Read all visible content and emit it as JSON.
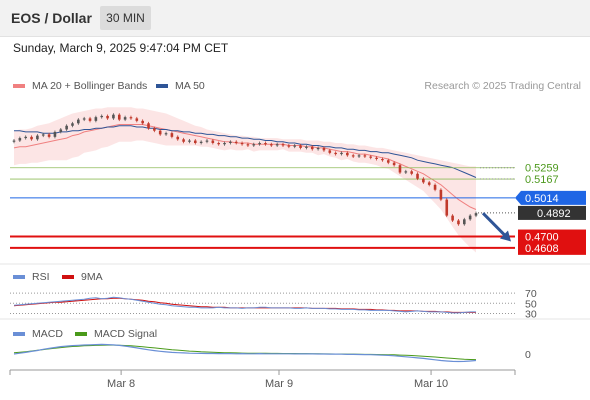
{
  "header": {
    "title": "EOS / Dollar",
    "interval": "30 MIN"
  },
  "datetime": "Sunday, March 9, 2025 9:47:04 PM CET",
  "credit": "Research © 2025 Trading Central",
  "colors": {
    "bollinger": "#f08080",
    "ma50": "#2f5597",
    "ma20": "#f08080",
    "bb_fill": "#fbdcdc",
    "candle": "#c0392b",
    "resistance": "#8fbc5a",
    "pivot": "#1f66e5",
    "support": "#e01010",
    "price_tag": "#333333",
    "rsi": "#6a8fd6",
    "rsi_ma": "#d01010",
    "macd": "#6a8fd6",
    "macd_signal": "#4a9a1a"
  },
  "chart_data": [
    {
      "type": "candlestick",
      "legend": [
        "MA 20 + Bollinger Bands",
        "MA 50"
      ],
      "ylim": [
        0.455,
        0.585
      ],
      "x_ticks": [
        "Mar 8",
        "Mar 9",
        "Mar 10"
      ],
      "levels": [
        {
          "value": 0.5259,
          "label": "0.5259",
          "kind": "resistance"
        },
        {
          "value": 0.5167,
          "label": "0.5167",
          "kind": "resistance"
        },
        {
          "value": 0.5014,
          "label": "0.5014",
          "kind": "pivot"
        },
        {
          "value": 0.4892,
          "label": "0.4892",
          "kind": "last_price"
        },
        {
          "value": 0.47,
          "label": "0.4700",
          "kind": "support"
        },
        {
          "value": 0.4608,
          "label": "0.4608",
          "kind": "support"
        }
      ],
      "close": [
        0.548,
        0.55,
        0.551,
        0.549,
        0.552,
        0.553,
        0.551,
        0.555,
        0.557,
        0.56,
        0.562,
        0.565,
        0.566,
        0.564,
        0.567,
        0.568,
        0.566,
        0.569,
        0.565,
        0.567,
        0.566,
        0.564,
        0.562,
        0.558,
        0.556,
        0.553,
        0.554,
        0.551,
        0.549,
        0.547,
        0.548,
        0.546,
        0.547,
        0.548,
        0.546,
        0.545,
        0.546,
        0.547,
        0.546,
        0.545,
        0.544,
        0.545,
        0.546,
        0.545,
        0.544,
        0.545,
        0.544,
        0.543,
        0.544,
        0.542,
        0.543,
        0.541,
        0.542,
        0.54,
        0.538,
        0.537,
        0.538,
        0.536,
        0.535,
        0.536,
        0.535,
        0.534,
        0.533,
        0.532,
        0.53,
        0.528,
        0.522,
        0.523,
        0.521,
        0.517,
        0.514,
        0.512,
        0.508,
        0.5,
        0.487,
        0.483,
        0.48,
        0.484,
        0.487,
        0.489
      ],
      "ma20": [
        0.542,
        0.543,
        0.543,
        0.544,
        0.545,
        0.546,
        0.547,
        0.548,
        0.549,
        0.55,
        0.552,
        0.553,
        0.555,
        0.556,
        0.557,
        0.558,
        0.559,
        0.56,
        0.561,
        0.561,
        0.561,
        0.561,
        0.561,
        0.56,
        0.559,
        0.558,
        0.557,
        0.556,
        0.555,
        0.554,
        0.553,
        0.552,
        0.551,
        0.55,
        0.549,
        0.548,
        0.547,
        0.547,
        0.546,
        0.546,
        0.546,
        0.545,
        0.545,
        0.545,
        0.545,
        0.545,
        0.545,
        0.544,
        0.544,
        0.544,
        0.543,
        0.543,
        0.542,
        0.542,
        0.541,
        0.54,
        0.539,
        0.539,
        0.538,
        0.537,
        0.537,
        0.536,
        0.535,
        0.534,
        0.533,
        0.531,
        0.529,
        0.527,
        0.525,
        0.523,
        0.521,
        0.518,
        0.515,
        0.512,
        0.508,
        0.504,
        0.5,
        0.497,
        0.494,
        0.492
      ],
      "bb_upper": [
        0.556,
        0.557,
        0.557,
        0.558,
        0.56,
        0.561,
        0.562,
        0.564,
        0.566,
        0.568,
        0.57,
        0.571,
        0.572,
        0.573,
        0.574,
        0.574,
        0.575,
        0.575,
        0.575,
        0.575,
        0.575,
        0.574,
        0.574,
        0.573,
        0.572,
        0.571,
        0.57,
        0.568,
        0.566,
        0.564,
        0.562,
        0.56,
        0.559,
        0.557,
        0.556,
        0.555,
        0.554,
        0.553,
        0.552,
        0.552,
        0.551,
        0.551,
        0.55,
        0.55,
        0.55,
        0.55,
        0.549,
        0.549,
        0.549,
        0.549,
        0.548,
        0.548,
        0.548,
        0.547,
        0.547,
        0.546,
        0.546,
        0.545,
        0.545,
        0.544,
        0.544,
        0.543,
        0.542,
        0.542,
        0.541,
        0.54,
        0.539,
        0.538,
        0.537,
        0.536,
        0.535,
        0.534,
        0.533,
        0.532,
        0.531,
        0.53,
        0.529,
        0.528,
        0.527,
        0.527
      ],
      "bb_lower": [
        0.528,
        0.529,
        0.529,
        0.53,
        0.53,
        0.531,
        0.532,
        0.532,
        0.532,
        0.532,
        0.534,
        0.535,
        0.538,
        0.539,
        0.54,
        0.542,
        0.543,
        0.545,
        0.547,
        0.547,
        0.547,
        0.548,
        0.548,
        0.547,
        0.546,
        0.545,
        0.544,
        0.544,
        0.544,
        0.544,
        0.544,
        0.544,
        0.543,
        0.543,
        0.542,
        0.541,
        0.54,
        0.541,
        0.54,
        0.54,
        0.541,
        0.539,
        0.54,
        0.54,
        0.54,
        0.54,
        0.541,
        0.539,
        0.539,
        0.539,
        0.538,
        0.538,
        0.536,
        0.537,
        0.535,
        0.534,
        0.532,
        0.533,
        0.531,
        0.53,
        0.53,
        0.529,
        0.528,
        0.526,
        0.525,
        0.522,
        0.519,
        0.516,
        0.513,
        0.51,
        0.507,
        0.502,
        0.497,
        0.492,
        0.485,
        0.478,
        0.471,
        0.466,
        0.461,
        0.457
      ],
      "ma50": [
        0.556,
        0.556,
        0.555,
        0.555,
        0.555,
        0.554,
        0.554,
        0.554,
        0.555,
        0.555,
        0.556,
        0.556,
        0.557,
        0.557,
        0.558,
        0.558,
        0.559,
        0.559,
        0.56,
        0.56,
        0.56,
        0.559,
        0.559,
        0.558,
        0.558,
        0.557,
        0.557,
        0.556,
        0.556,
        0.555,
        0.555,
        0.554,
        0.554,
        0.553,
        0.553,
        0.552,
        0.552,
        0.551,
        0.551,
        0.55,
        0.55,
        0.549,
        0.549,
        0.548,
        0.548,
        0.547,
        0.547,
        0.546,
        0.546,
        0.545,
        0.545,
        0.544,
        0.544,
        0.543,
        0.543,
        0.542,
        0.542,
        0.541,
        0.541,
        0.54,
        0.54,
        0.539,
        0.539,
        0.538,
        0.538,
        0.537,
        0.536,
        0.535,
        0.534,
        0.532,
        0.531,
        0.53,
        0.529,
        0.528,
        0.527,
        0.526,
        0.524,
        0.522,
        0.52,
        0.518
      ]
    },
    {
      "type": "line",
      "legend": [
        "RSI",
        "9MA"
      ],
      "ylim": [
        25,
        80
      ],
      "y_ticks": [
        "70",
        "50",
        "30"
      ],
      "rsi": [
        46,
        47,
        48,
        49,
        50,
        51,
        52,
        53,
        54,
        55,
        56,
        57,
        58,
        60,
        61,
        59,
        60,
        62,
        61,
        59,
        58,
        56,
        54,
        52,
        50,
        48,
        47,
        45,
        44,
        43,
        42,
        42,
        41,
        41,
        41,
        42,
        41,
        41,
        41,
        40,
        41,
        41,
        42,
        42,
        41,
        41,
        41,
        41,
        40,
        40,
        41,
        40,
        40,
        40,
        39,
        39,
        38,
        38,
        38,
        37,
        37,
        36,
        36,
        36,
        36,
        35,
        34,
        33,
        34,
        35,
        34,
        33,
        33,
        33,
        32,
        31,
        31,
        32,
        33,
        33
      ],
      "ma": [
        45,
        46,
        47,
        48,
        49,
        50,
        51,
        52,
        52,
        53,
        54,
        55,
        56,
        57,
        58,
        59,
        59,
        60,
        60,
        59,
        58,
        57,
        56,
        54,
        53,
        51,
        50,
        48,
        47,
        46,
        45,
        44,
        43,
        43,
        42,
        42,
        42,
        41,
        41,
        41,
        41,
        41,
        41,
        41,
        41,
        41,
        41,
        41,
        41,
        41,
        41,
        40,
        40,
        40,
        40,
        40,
        39,
        39,
        39,
        38,
        38,
        38,
        37,
        37,
        36,
        36,
        35,
        35,
        35,
        35,
        34,
        34,
        34,
        33,
        33,
        32,
        32,
        32,
        32,
        32
      ]
    },
    {
      "type": "line",
      "legend": [
        "MACD",
        "MACD Signal"
      ],
      "ylim": [
        -0.012,
        0.012
      ],
      "y_ticks": [
        "0"
      ],
      "macd": [
        0.0,
        0.0007,
        0.0014,
        0.0022,
        0.003,
        0.004,
        0.0048,
        0.0056,
        0.0063,
        0.0068,
        0.0072,
        0.0075,
        0.0077,
        0.0079,
        0.0081,
        0.0082,
        0.0081,
        0.0078,
        0.0074,
        0.0068,
        0.006,
        0.0052,
        0.0044,
        0.0036,
        0.0029,
        0.0023,
        0.0018,
        0.0014,
        0.0011,
        0.0009,
        0.0007,
        0.0006,
        0.0005,
        0.0004,
        0.0004,
        0.0003,
        0.0003,
        0.0003,
        0.0002,
        0.0003,
        0.0002,
        0.0002,
        0.0003,
        0.0002,
        0.0002,
        0.0002,
        0.0002,
        0.0002,
        0.0001,
        0.0001,
        0.0001,
        0.0001,
        0.0,
        0.0,
        -0.0001,
        -0.0001,
        -0.0002,
        -0.0003,
        -0.0003,
        -0.0004,
        -0.0005,
        -0.0006,
        -0.0008,
        -0.001,
        -0.0012,
        -0.0015,
        -0.002,
        -0.0024,
        -0.0028,
        -0.0033,
        -0.0038,
        -0.0044,
        -0.005,
        -0.0056,
        -0.006,
        -0.0063,
        -0.0064,
        -0.0063,
        -0.006,
        -0.0056
      ],
      "signal": [
        0.001,
        0.0015,
        0.002,
        0.0026,
        0.0032,
        0.0038,
        0.0044,
        0.005,
        0.0055,
        0.006,
        0.0064,
        0.0067,
        0.007,
        0.0072,
        0.0074,
        0.0075,
        0.0076,
        0.0076,
        0.0075,
        0.0073,
        0.007,
        0.0066,
        0.0062,
        0.0057,
        0.0052,
        0.0047,
        0.0042,
        0.0037,
        0.0033,
        0.0029,
        0.0025,
        0.0022,
        0.0019,
        0.0017,
        0.0015,
        0.0013,
        0.0011,
        0.001,
        0.0009,
        0.0008,
        0.0007,
        0.0007,
        0.0006,
        0.0006,
        0.0005,
        0.0005,
        0.0004,
        0.0004,
        0.0004,
        0.0003,
        0.0003,
        0.0002,
        0.0002,
        0.0001,
        0.0001,
        0.0,
        0.0,
        -0.0001,
        -0.0001,
        -0.0002,
        -0.0003,
        -0.0003,
        -0.0004,
        -0.0005,
        -0.0006,
        -0.0007,
        -0.0009,
        -0.0011,
        -0.0013,
        -0.0016,
        -0.0019,
        -0.0022,
        -0.0026,
        -0.003,
        -0.0034,
        -0.0038,
        -0.0042,
        -0.0045,
        -0.0047,
        -0.0048
      ]
    }
  ]
}
